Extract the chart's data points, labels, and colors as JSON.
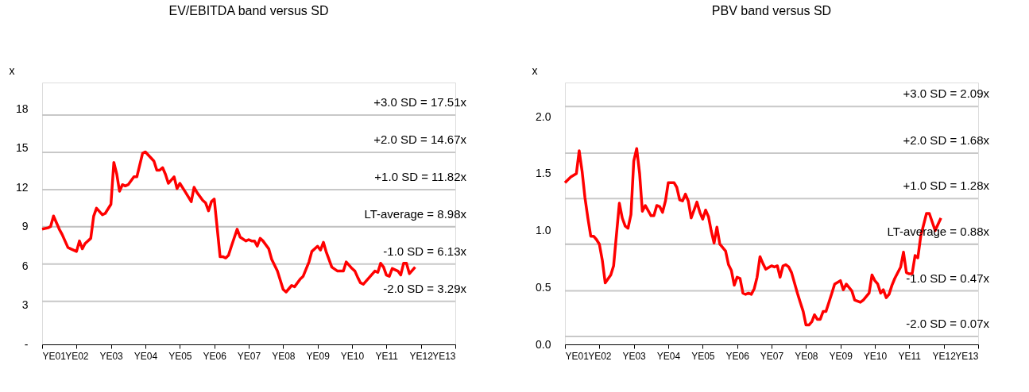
{
  "chart_data": [
    {
      "type": "line",
      "title": "EV/EBITDA band versus SD",
      "ylabel": "x",
      "color": "#ff0000",
      "grid": false,
      "legend": false,
      "xlim": [
        "2001-12",
        "2013-12"
      ],
      "xticks": [
        {
          "value": "2001-12",
          "label": "YE01"
        },
        {
          "value": "2002-12",
          "label": "YE02"
        },
        {
          "value": "2003-12",
          "label": "YE03"
        },
        {
          "value": "2004-12",
          "label": "YE04"
        },
        {
          "value": "2005-12",
          "label": "YE05"
        },
        {
          "value": "2006-12",
          "label": "YE06"
        },
        {
          "value": "2007-12",
          "label": "YE07"
        },
        {
          "value": "2008-12",
          "label": "YE08"
        },
        {
          "value": "2009-12",
          "label": "YE09"
        },
        {
          "value": "2010-12",
          "label": "YE10"
        },
        {
          "value": "2011-12",
          "label": "YE11"
        },
        {
          "value": "2012-12",
          "label": "YE12"
        },
        {
          "value": "2013-12",
          "label": "YE13"
        }
      ],
      "ylim": [
        0,
        20
      ],
      "yticks": [
        {
          "value": 0,
          "label": "-"
        },
        3,
        6,
        9,
        12,
        15,
        18
      ],
      "x": [
        "2001-12",
        "2002-02",
        "2002-03",
        "2002-04",
        "2002-06",
        "2002-07",
        "2002-09",
        "2002-10",
        "2002-12",
        "2003-01",
        "2003-02",
        "2003-03",
        "2003-05",
        "2003-06",
        "2003-07",
        "2003-09",
        "2003-10",
        "2003-12",
        "2004-01",
        "2004-02",
        "2004-03",
        "2004-04",
        "2004-05",
        "2004-06",
        "2004-08",
        "2004-09",
        "2004-11",
        "2004-12",
        "2005-03",
        "2005-04",
        "2005-05",
        "2005-06",
        "2005-07",
        "2005-08",
        "2005-10",
        "2005-11",
        "2005-12",
        "2006-02",
        "2006-04",
        "2006-05",
        "2006-06",
        "2006-08",
        "2006-09",
        "2006-10",
        "2006-11",
        "2006-12",
        "2007-02",
        "2007-03",
        "2007-04",
        "2007-05",
        "2007-06",
        "2007-08",
        "2007-09",
        "2007-11",
        "2007-12",
        "2008-01",
        "2008-02",
        "2008-03",
        "2008-04",
        "2008-05",
        "2008-07",
        "2008-08",
        "2008-10",
        "2008-12",
        "2009-01",
        "2009-03",
        "2009-04",
        "2009-06",
        "2009-07",
        "2009-09",
        "2009-10",
        "2009-12",
        "2010-01",
        "2010-02",
        "2010-03",
        "2010-05",
        "2010-07",
        "2010-09",
        "2010-10",
        "2010-12",
        "2011-01",
        "2011-02",
        "2011-03",
        "2011-04",
        "2011-06",
        "2011-08",
        "2011-09",
        "2011-10",
        "2011-11",
        "2011-12",
        "2012-01",
        "2012-02",
        "2012-04",
        "2012-05",
        "2012-06",
        "2012-07",
        "2012-08",
        "2012-10"
      ],
      "values": [
        8.8,
        8.9,
        9.0,
        9.8,
        8.8,
        8.4,
        7.4,
        7.3,
        7.1,
        7.9,
        7.3,
        7.7,
        8.1,
        9.8,
        10.4,
        9.9,
        10.0,
        10.7,
        13.9,
        13.0,
        11.7,
        12.2,
        12.1,
        12.2,
        12.8,
        12.8,
        14.6,
        14.7,
        14.0,
        13.3,
        13.3,
        13.5,
        13.0,
        12.3,
        12.8,
        11.9,
        12.3,
        11.6,
        10.9,
        12.0,
        11.6,
        11.0,
        10.8,
        10.2,
        10.9,
        11.1,
        6.7,
        6.7,
        6.6,
        6.8,
        7.5,
        8.8,
        8.2,
        7.9,
        8.0,
        7.9,
        7.9,
        7.5,
        8.1,
        7.9,
        7.3,
        6.5,
        5.6,
        4.2,
        4.0,
        4.5,
        4.4,
        5.0,
        5.2,
        6.3,
        7.1,
        7.5,
        7.2,
        7.8,
        7.1,
        5.9,
        5.6,
        5.6,
        6.3,
        5.8,
        5.6,
        5.1,
        4.7,
        4.6,
        5.1,
        5.6,
        5.5,
        6.2,
        5.9,
        5.3,
        5.2,
        5.8,
        5.6,
        5.3,
        6.2,
        6.2,
        5.4,
        5.9
      ],
      "ref_lines": [
        {
          "axis": "y",
          "value": 17.51,
          "label": "+3.0 SD = 17.51x",
          "color": "#c8c8c8"
        },
        {
          "axis": "y",
          "value": 14.67,
          "label": "+2.0 SD = 14.67x",
          "color": "#c8c8c8"
        },
        {
          "axis": "y",
          "value": 11.82,
          "label": "+1.0 SD = 11.82x",
          "color": "#c8c8c8"
        },
        {
          "axis": "y",
          "value": 8.98,
          "label": "LT-average = 8.98x",
          "color": "#bfbfbf"
        },
        {
          "axis": "y",
          "value": 6.13,
          "label": "-1.0 SD = 6.13x",
          "color": "#c8c8c8"
        },
        {
          "axis": "y",
          "value": 3.29,
          "label": "-2.0 SD = 3.29x",
          "color": "#c8c8c8"
        }
      ]
    },
    {
      "type": "line",
      "title": "PBV band versus SD",
      "ylabel": "x",
      "color": "#ff0000",
      "grid": false,
      "legend": false,
      "xlim": [
        "2001-12",
        "2013-12"
      ],
      "xticks": [
        {
          "value": "2001-12",
          "label": "YE01"
        },
        {
          "value": "2002-12",
          "label": "YE02"
        },
        {
          "value": "2003-12",
          "label": "YE03"
        },
        {
          "value": "2004-12",
          "label": "YE04"
        },
        {
          "value": "2005-12",
          "label": "YE05"
        },
        {
          "value": "2006-12",
          "label": "YE06"
        },
        {
          "value": "2007-12",
          "label": "YE07"
        },
        {
          "value": "2008-12",
          "label": "YE08"
        },
        {
          "value": "2009-12",
          "label": "YE09"
        },
        {
          "value": "2010-12",
          "label": "YE10"
        },
        {
          "value": "2011-12",
          "label": "YE11"
        },
        {
          "value": "2012-12",
          "label": "YE12"
        },
        {
          "value": "2013-12",
          "label": "YE13"
        }
      ],
      "ylim": [
        0,
        2.3
      ],
      "yticks": [
        {
          "value": 0,
          "label": "0.0"
        },
        0.5,
        {
          "value": 1,
          "label": "1.0"
        },
        1.5,
        {
          "value": 2,
          "label": "2.0"
        }
      ],
      "x": [
        "2001-12",
        "2002-02",
        "2002-04",
        "2002-05",
        "2002-06",
        "2002-07",
        "2002-08",
        "2002-09",
        "2002-10",
        "2002-11",
        "2002-12",
        "2003-01",
        "2003-02",
        "2003-04",
        "2003-05",
        "2003-07",
        "2003-08",
        "2003-09",
        "2003-10",
        "2003-11",
        "2003-12",
        "2004-01",
        "2004-02",
        "2004-03",
        "2004-04",
        "2004-06",
        "2004-07",
        "2004-08",
        "2004-09",
        "2004-10",
        "2004-11",
        "2004-12",
        "2005-02",
        "2005-03",
        "2005-04",
        "2005-05",
        "2005-06",
        "2005-07",
        "2005-08",
        "2005-10",
        "2005-11",
        "2005-12",
        "2006-01",
        "2006-02",
        "2006-03",
        "2006-04",
        "2006-05",
        "2006-06",
        "2006-08",
        "2006-09",
        "2006-10",
        "2006-11",
        "2006-12",
        "2007-01",
        "2007-02",
        "2007-03",
        "2007-04",
        "2007-05",
        "2007-06",
        "2007-07",
        "2007-08",
        "2007-09",
        "2007-10",
        "2007-12",
        "2008-01",
        "2008-02",
        "2008-03",
        "2008-04",
        "2008-05",
        "2008-06",
        "2008-07",
        "2008-09",
        "2008-10",
        "2008-11",
        "2008-12",
        "2009-01",
        "2009-02",
        "2009-03",
        "2009-04",
        "2009-05",
        "2009-06",
        "2009-07",
        "2009-08",
        "2009-09",
        "2009-10",
        "2009-12",
        "2010-01",
        "2010-02",
        "2010-04",
        "2010-05",
        "2010-07",
        "2010-08",
        "2010-10",
        "2010-11",
        "2010-12",
        "2011-01",
        "2011-02",
        "2011-03",
        "2011-04",
        "2011-05",
        "2011-06",
        "2011-07",
        "2011-09",
        "2011-10",
        "2011-11",
        "2011-12",
        "2012-01",
        "2012-02",
        "2012-03",
        "2012-04",
        "2012-06",
        "2012-07",
        "2012-09",
        "2012-11"
      ],
      "values": [
        1.42,
        1.47,
        1.5,
        1.7,
        1.52,
        1.29,
        1.11,
        0.95,
        0.95,
        0.92,
        0.88,
        0.74,
        0.54,
        0.61,
        0.69,
        1.24,
        1.11,
        1.04,
        1.02,
        1.14,
        1.61,
        1.72,
        1.5,
        1.17,
        1.22,
        1.13,
        1.13,
        1.22,
        1.21,
        1.16,
        1.26,
        1.42,
        1.42,
        1.38,
        1.27,
        1.26,
        1.32,
        1.26,
        1.11,
        1.25,
        1.16,
        1.1,
        1.18,
        1.12,
        1.0,
        0.89,
        1.03,
        0.88,
        0.82,
        0.7,
        0.65,
        0.52,
        0.59,
        0.58,
        0.45,
        0.44,
        0.45,
        0.44,
        0.49,
        0.59,
        0.77,
        0.71,
        0.66,
        0.69,
        0.68,
        0.69,
        0.59,
        0.69,
        0.7,
        0.68,
        0.63,
        0.45,
        0.37,
        0.29,
        0.17,
        0.17,
        0.2,
        0.26,
        0.22,
        0.22,
        0.29,
        0.29,
        0.37,
        0.45,
        0.53,
        0.56,
        0.48,
        0.53,
        0.47,
        0.39,
        0.37,
        0.39,
        0.45,
        0.61,
        0.56,
        0.53,
        0.45,
        0.48,
        0.41,
        0.44,
        0.52,
        0.58,
        0.68,
        0.81,
        0.63,
        0.62,
        0.62,
        0.78,
        0.76,
        0.95,
        1.15,
        1.15,
        1.0,
        1.11
      ],
      "ref_lines": [
        {
          "axis": "y",
          "value": 2.09,
          "label": "+3.0 SD = 2.09x",
          "color": "#c8c8c8"
        },
        {
          "axis": "y",
          "value": 1.68,
          "label": "+2.0 SD = 1.68x",
          "color": "#c8c8c8"
        },
        {
          "axis": "y",
          "value": 1.28,
          "label": "+1.0 SD = 1.28x",
          "color": "#c8c8c8"
        },
        {
          "axis": "y",
          "value": 0.88,
          "label": "LT-average = 0.88x",
          "color": "#bfbfbf"
        },
        {
          "axis": "y",
          "value": 0.47,
          "label": "-1.0 SD = 0.47x",
          "color": "#c8c8c8"
        },
        {
          "axis": "y",
          "value": 0.07,
          "label": "-2.0 SD = 0.07x",
          "color": "#c8c8c8"
        }
      ]
    }
  ]
}
